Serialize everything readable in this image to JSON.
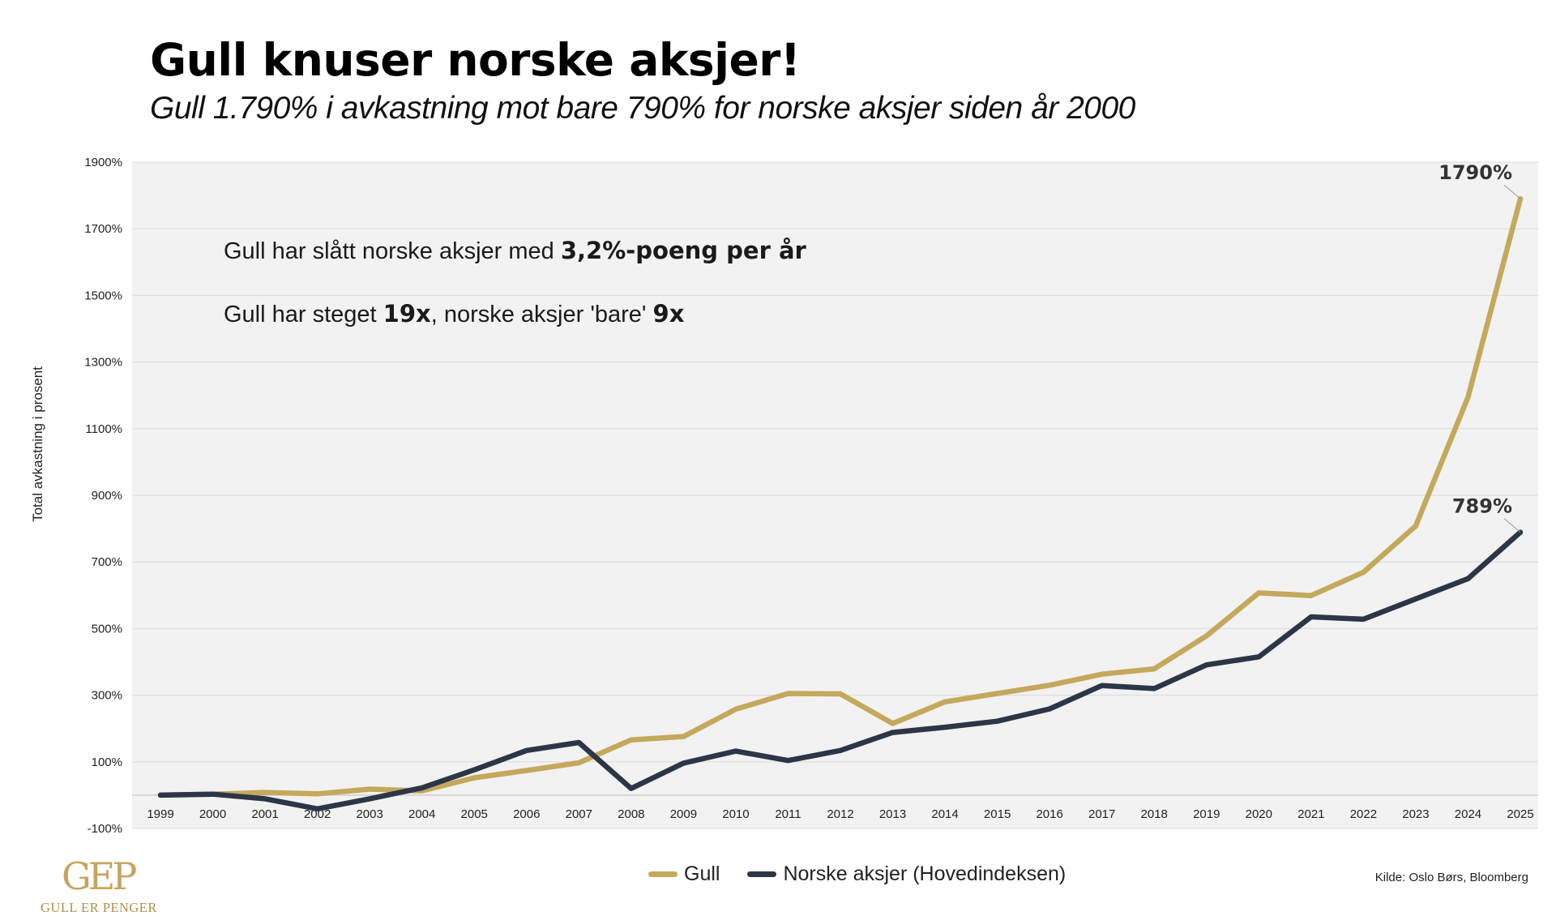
{
  "header": {
    "title": "Gull knuser norske aksjer!",
    "subtitle": "Gull 1.790% i avkastning mot bare 790% for norske aksjer siden år 2000"
  },
  "notes": {
    "line1_prefix": "Gull har slått norske aksjer med ",
    "line1_bold": "3,2%-poeng per år",
    "line2_prefix": "Gull har steget ",
    "line2_bold1": "19x",
    "line2_middle": ", norske aksjer 'bare' ",
    "line2_bold2": "9x"
  },
  "source": "Kilde: Oslo Børs, Bloomberg",
  "logo": {
    "mark": "GEP",
    "text": "GULL ER PENGER"
  },
  "colors": {
    "gold": "#c4a95c",
    "navy": "#2c3646",
    "plot_bg": "#f2f2f2",
    "grid": "#dadada"
  },
  "chart_data": {
    "type": "line",
    "title": "Gull knuser norske aksjer!",
    "xlabel": "",
    "ylabel": "Total avkastning i prosent",
    "ylim": [
      -100,
      1900
    ],
    "yticks": [
      -100,
      100,
      300,
      500,
      700,
      900,
      1100,
      1300,
      1500,
      1700,
      1900
    ],
    "ytick_labels": [
      "-100%",
      "100%",
      "300%",
      "500%",
      "700%",
      "900%",
      "1100%",
      "1300%",
      "1500%",
      "1700%",
      "1900%"
    ],
    "x": [
      "1999",
      "2000",
      "2001",
      "2002",
      "2003",
      "2004",
      "2005",
      "2006",
      "2007",
      "2008",
      "2009",
      "2010",
      "2011",
      "2012",
      "2013",
      "2014",
      "2015",
      "2016",
      "2017",
      "2018",
      "2019",
      "2020",
      "2021",
      "2022",
      "2023",
      "2024",
      "2025"
    ],
    "series": [
      {
        "name": "Gull",
        "color_key": "gold",
        "values": [
          0,
          3,
          8,
          4,
          18,
          13,
          52,
          74,
          97,
          166,
          176,
          258,
          305,
          304,
          215,
          280,
          305,
          330,
          363,
          379,
          478,
          607,
          599,
          669,
          808,
          1195,
          1790
        ],
        "end_label": "1790%"
      },
      {
        "name": "Norske aksjer (Hovedindeksen)",
        "color_key": "navy",
        "values": [
          0,
          3,
          -11,
          -41,
          -11,
          22,
          76,
          134,
          158,
          20,
          96,
          132,
          104,
          134,
          188,
          204,
          222,
          259,
          329,
          320,
          391,
          415,
          535,
          528,
          589,
          650,
          789
        ],
        "end_label": "789%"
      }
    ],
    "legend": "bottom-center",
    "grid": true
  }
}
